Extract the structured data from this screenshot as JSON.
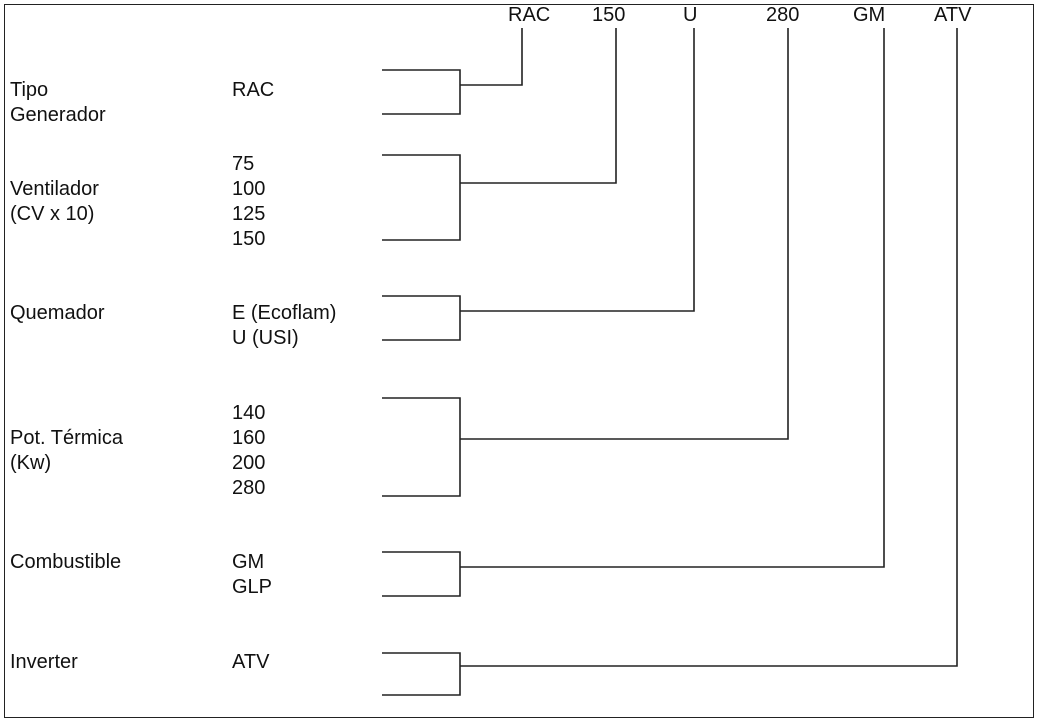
{
  "code": {
    "parts": [
      "RAC",
      "150",
      "U",
      "280",
      "GM",
      "ATV"
    ]
  },
  "rows": [
    {
      "label_lines": [
        "Tipo",
        "Generador"
      ],
      "values": [
        "RAC"
      ]
    },
    {
      "label_lines": [
        "Ventilador",
        "(CV x 10)"
      ],
      "values": [
        "75",
        "100",
        "125",
        "150"
      ]
    },
    {
      "label_lines": [
        "Quemador"
      ],
      "values": [
        "E (Ecoflam)",
        "U (USI)"
      ]
    },
    {
      "label_lines": [
        "Pot. Térmica",
        "(Kw)"
      ],
      "values": [
        "140",
        "160",
        "200",
        "280"
      ]
    },
    {
      "label_lines": [
        "Combustible"
      ],
      "values": [
        "GM",
        "GLP"
      ]
    },
    {
      "label_lines": [
        "Inverter"
      ],
      "values": [
        "ATV"
      ]
    }
  ]
}
